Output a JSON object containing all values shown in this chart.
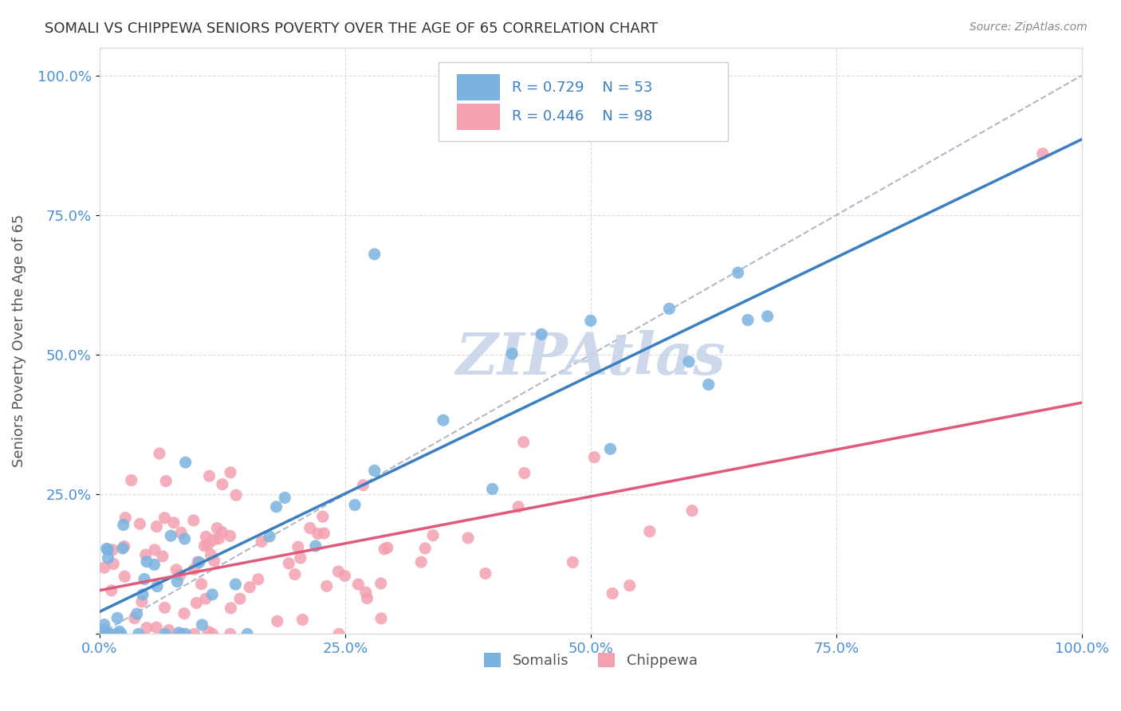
{
  "title": "SOMALI VS CHIPPEWA SENIORS POVERTY OVER THE AGE OF 65 CORRELATION CHART",
  "source": "Source: ZipAtlas.com",
  "ylabel": "Seniors Poverty Over the Age of 65",
  "somali_R": 0.729,
  "somali_N": 53,
  "chippewa_R": 0.446,
  "chippewa_N": 98,
  "somali_color": "#7ab3e0",
  "chippewa_color": "#f4a0b0",
  "somali_line_color": "#3a7fc1",
  "chippewa_line_color": "#e05a7a",
  "diagonal_color": "#b0b8c8",
  "background_color": "#ffffff",
  "grid_color": "#cccccc",
  "watermark_color": "#c8d4e8",
  "title_color": "#333333",
  "axis_label_color": "#555555",
  "tick_color": "#4a90d9",
  "legend_R_color": "#3a7fc1",
  "xlim": [
    0.0,
    1.0
  ],
  "ylim": [
    0.0,
    1.05
  ],
  "xticks": [
    0.0,
    0.25,
    0.5,
    0.75,
    1.0
  ],
  "yticks": [
    0.0,
    0.25,
    0.5,
    0.75,
    1.0
  ],
  "xticklabels": [
    "0.0%",
    "25.0%",
    "50.0%",
    "75.0%",
    "100.0%"
  ],
  "yticklabels": [
    "",
    "25.0%",
    "50.0%",
    "75.0%",
    "100.0%"
  ],
  "figsize": [
    14.06,
    8.92
  ],
  "dpi": 100
}
